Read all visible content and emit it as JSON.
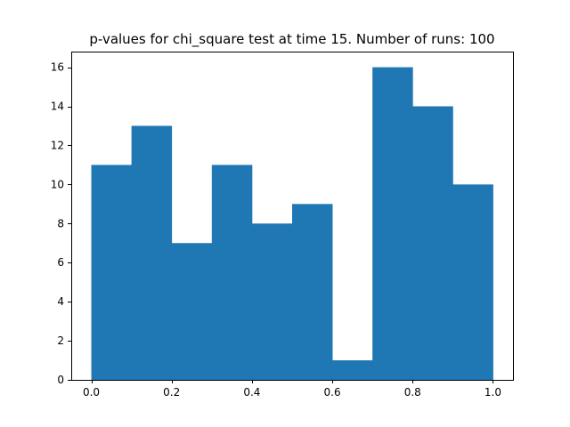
{
  "chart_data": {
    "type": "bar",
    "title": "p-values for chi_square test at time 15. Number of runs: 100",
    "xlabel": "",
    "ylabel": "",
    "bins": [
      {
        "start": 0.0,
        "end": 0.1,
        "count": 11
      },
      {
        "start": 0.1,
        "end": 0.2,
        "count": 13
      },
      {
        "start": 0.2,
        "end": 0.3,
        "count": 7
      },
      {
        "start": 0.3,
        "end": 0.4,
        "count": 11
      },
      {
        "start": 0.4,
        "end": 0.5,
        "count": 8
      },
      {
        "start": 0.5,
        "end": 0.6,
        "count": 9
      },
      {
        "start": 0.6,
        "end": 0.7,
        "count": 1
      },
      {
        "start": 0.7,
        "end": 0.8,
        "count": 16
      },
      {
        "start": 0.8,
        "end": 0.9,
        "count": 14
      },
      {
        "start": 0.9,
        "end": 1.0,
        "count": 10
      }
    ],
    "xlim": [
      -0.05,
      1.05
    ],
    "ylim": [
      0,
      16.8
    ],
    "xticks": [
      0.0,
      0.2,
      0.4,
      0.6,
      0.8,
      1.0
    ],
    "xtick_labels": [
      "0.0",
      "0.2",
      "0.4",
      "0.6",
      "0.8",
      "1.0"
    ],
    "yticks": [
      0,
      2,
      4,
      6,
      8,
      10,
      12,
      14,
      16
    ],
    "ytick_labels": [
      "0",
      "2",
      "4",
      "6",
      "8",
      "10",
      "12",
      "14",
      "16"
    ],
    "bar_color": "#1f77b4",
    "grid": false,
    "legend": false
  }
}
